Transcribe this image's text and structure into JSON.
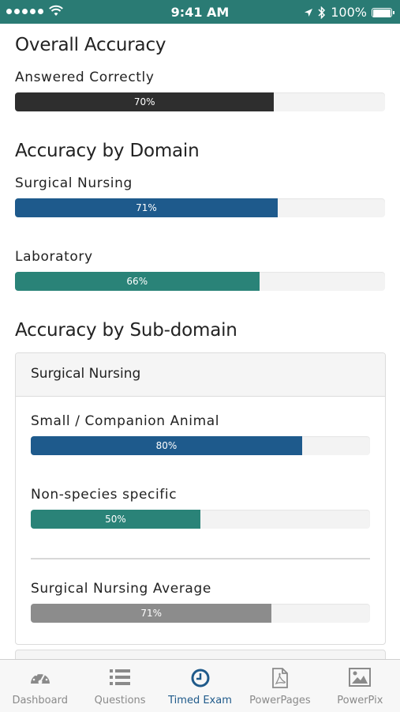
{
  "status_bar": {
    "time": "9:41 AM",
    "battery": "100%"
  },
  "overall": {
    "title": "Overall Accuracy",
    "label": "Answered Correctly",
    "percent": 70,
    "percent_label": "70%",
    "color": "#2e2e2e"
  },
  "domain": {
    "title": "Accuracy by Domain",
    "items": [
      {
        "label": "Surgical Nursing",
        "percent": 71,
        "percent_label": "71%",
        "color": "#1e5a8c"
      },
      {
        "label": "Laboratory",
        "percent": 66,
        "percent_label": "66%",
        "color": "#2a8378"
      }
    ]
  },
  "subdomain": {
    "title": "Accuracy by Sub-domain",
    "panel_title": "Surgical Nursing",
    "items": [
      {
        "label": "Small / Companion Animal",
        "percent": 80,
        "percent_label": "80%",
        "color": "#1e5a8c"
      },
      {
        "label": "Non-species specific",
        "percent": 50,
        "percent_label": "50%",
        "color": "#2a8378"
      }
    ],
    "average": {
      "label": "Surgical Nursing Average",
      "percent": 71,
      "percent_label": "71%",
      "color": "#8c8c8c"
    }
  },
  "tabs": [
    {
      "label": "Dashboard",
      "icon": "dashboard-gauge-icon",
      "active": false
    },
    {
      "label": "Questions",
      "icon": "list-icon",
      "active": false
    },
    {
      "label": "Timed Exam",
      "icon": "clock-icon",
      "active": true
    },
    {
      "label": "PowerPages",
      "icon": "pdf-document-icon",
      "active": false
    },
    {
      "label": "PowerPix",
      "icon": "image-icon",
      "active": false
    }
  ],
  "colors": {
    "status_bar": "#2a7b74",
    "active_tab": "#1f5a8a",
    "inactive_tab": "#8a8a8a"
  }
}
